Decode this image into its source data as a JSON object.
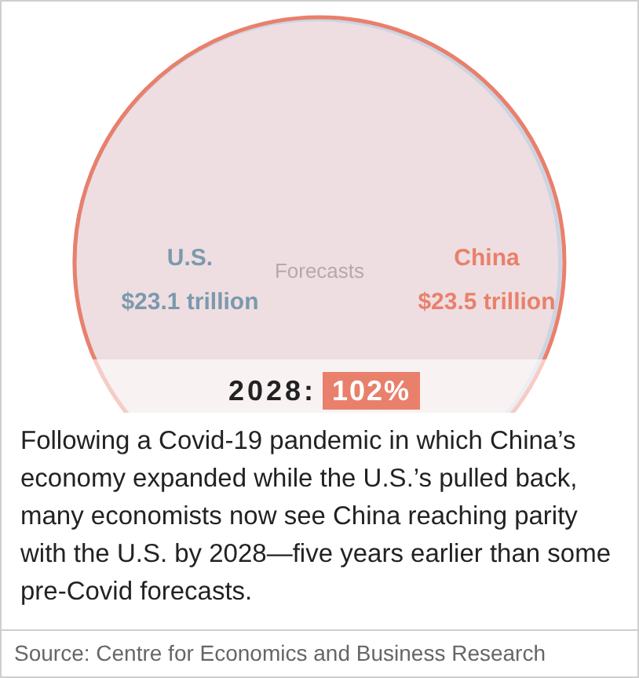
{
  "chart_data": {
    "type": "other",
    "title": "2028:",
    "categories": [
      "U.S.",
      "China"
    ],
    "values": [
      23.1,
      23.5
    ],
    "value_labels": [
      "$23.1 trillion",
      "$23.5 trillion"
    ],
    "colors": [
      "#a9d3ee",
      "#e9806c"
    ],
    "annotations": [
      "102%",
      "Forecasts",
      "Following a Covid-19 pandemic in which China’s economy expanded while the U.S.’s pulled back, many economists now see China reaching parity with the U.S. by 2028—five years earlier than some pre-Covid forecasts.",
      "Source: Centre for Economics and Business Research"
    ]
  }
}
